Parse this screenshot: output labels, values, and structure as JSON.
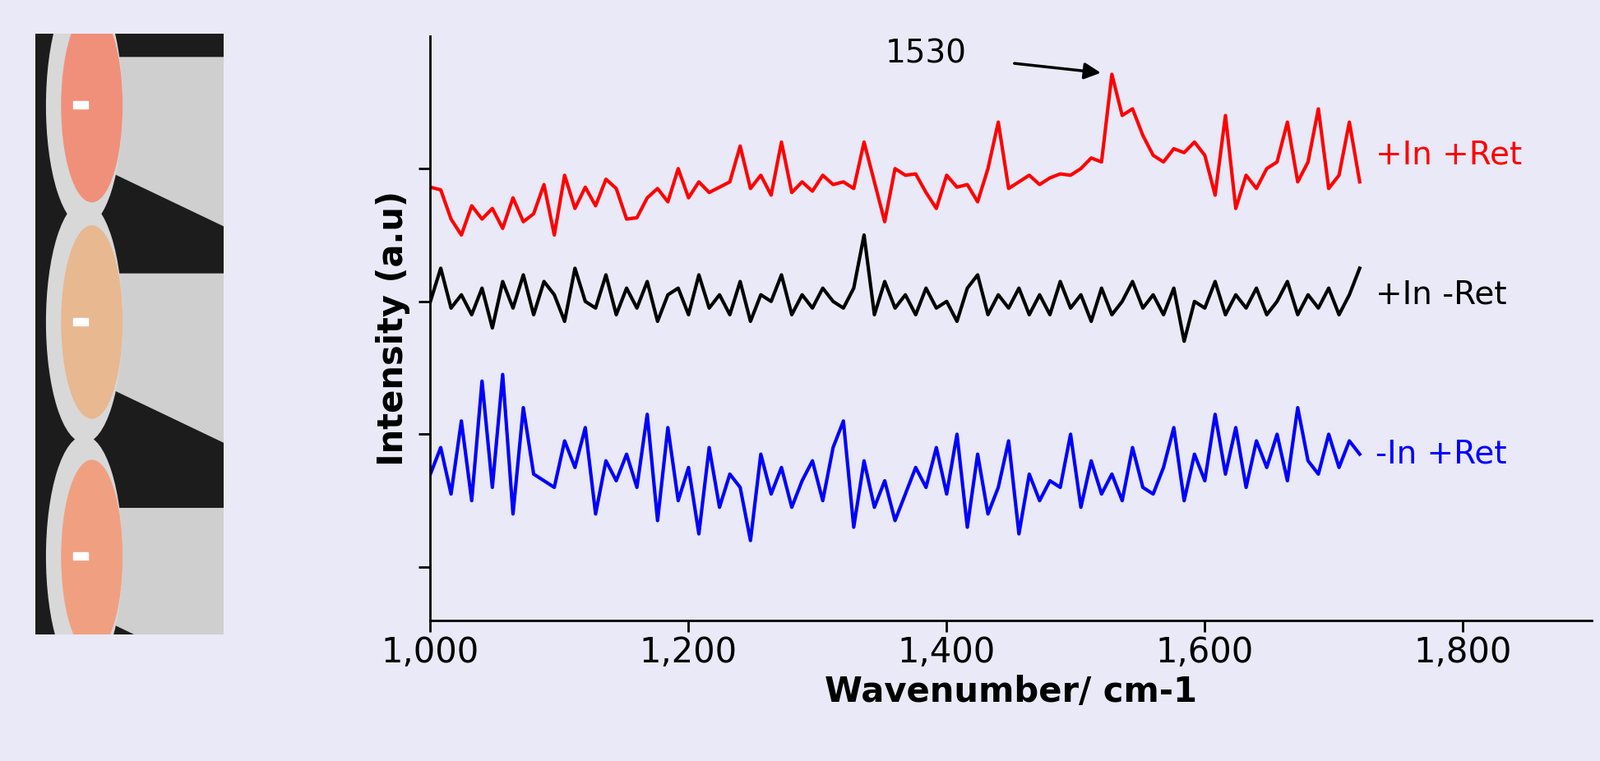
{
  "chart_data": {
    "type": "line",
    "x_label": "Wavenumber/ cm-1",
    "y_label": "Intensity (a.u)",
    "xlim": [
      1000,
      1900
    ],
    "xticks": [
      {
        "value": 1000,
        "label": "1,000"
      },
      {
        "value": 1200,
        "label": "1,200"
      },
      {
        "value": 1400,
        "label": "1,400"
      },
      {
        "value": 1600,
        "label": "1,600"
      },
      {
        "value": 1800,
        "label": "1,800"
      }
    ],
    "ylim": [
      -0.4,
      4.0
    ],
    "yticks": [
      0,
      1,
      2,
      3
    ],
    "tick_labels": "x",
    "grid": false,
    "annotations": [
      {
        "text": "1530",
        "x": 1530,
        "y": 3.71
      }
    ],
    "x": [
      1000,
      1008,
      1016,
      1024,
      1032,
      1040,
      1048,
      1056,
      1064,
      1072,
      1080,
      1088,
      1096,
      1104,
      1112,
      1120,
      1128,
      1136,
      1144,
      1152,
      1160,
      1168,
      1176,
      1184,
      1192,
      1200,
      1208,
      1216,
      1224,
      1232,
      1240,
      1248,
      1256,
      1264,
      1272,
      1280,
      1288,
      1296,
      1304,
      1312,
      1320,
      1328,
      1336,
      1344,
      1352,
      1360,
      1368,
      1376,
      1384,
      1392,
      1400,
      1408,
      1416,
      1424,
      1432,
      1440,
      1448,
      1456,
      1464,
      1472,
      1480,
      1488,
      1496,
      1504,
      1512,
      1520,
      1528,
      1536,
      1544,
      1552,
      1560,
      1568,
      1576,
      1584,
      1592,
      1600,
      1608,
      1616,
      1624,
      1632,
      1640,
      1648,
      1656,
      1664,
      1672,
      1680,
      1688,
      1696,
      1704,
      1712,
      1720
    ],
    "series": [
      {
        "name": "+In +Ret",
        "color": "#ff0000",
        "values": [
          2.86,
          2.84,
          2.62,
          2.5,
          2.72,
          2.62,
          2.7,
          2.55,
          2.78,
          2.6,
          2.66,
          2.88,
          2.5,
          2.95,
          2.7,
          2.86,
          2.72,
          2.92,
          2.85,
          2.62,
          2.63,
          2.78,
          2.85,
          2.75,
          3.0,
          2.78,
          2.9,
          2.82,
          2.86,
          2.9,
          3.17,
          2.85,
          2.95,
          2.8,
          3.2,
          2.82,
          2.9,
          2.83,
          2.95,
          2.88,
          2.9,
          2.85,
          3.2,
          2.9,
          2.6,
          3.0,
          2.95,
          2.96,
          2.82,
          2.7,
          2.95,
          2.86,
          2.88,
          2.75,
          3.0,
          3.35,
          2.85,
          2.9,
          2.95,
          2.88,
          2.93,
          2.96,
          2.95,
          3.0,
          3.08,
          3.05,
          3.71,
          3.4,
          3.45,
          3.25,
          3.1,
          3.05,
          3.15,
          3.12,
          3.2,
          3.1,
          2.8,
          3.4,
          2.7,
          2.95,
          2.85,
          3.0,
          3.05,
          3.35,
          2.9,
          3.05,
          3.45,
          2.85,
          2.95,
          3.35,
          2.9
        ]
      },
      {
        "name": "+In -Ret",
        "color": "#000000",
        "values": [
          2.0,
          2.25,
          1.95,
          2.05,
          1.9,
          2.1,
          1.8,
          2.15,
          1.95,
          2.2,
          1.9,
          2.15,
          2.05,
          1.85,
          2.25,
          2.0,
          1.95,
          2.2,
          1.9,
          2.1,
          1.95,
          2.15,
          1.85,
          2.05,
          2.1,
          1.9,
          2.2,
          1.95,
          2.05,
          1.9,
          2.15,
          1.85,
          2.05,
          2.0,
          2.2,
          1.9,
          2.05,
          1.95,
          2.1,
          2.0,
          1.95,
          2.1,
          2.5,
          1.9,
          2.15,
          1.95,
          2.05,
          1.9,
          2.1,
          1.95,
          2.0,
          1.85,
          2.1,
          2.2,
          1.9,
          2.05,
          1.95,
          2.1,
          1.9,
          2.05,
          1.9,
          2.15,
          1.95,
          2.05,
          1.85,
          2.1,
          1.9,
          2.0,
          2.15,
          1.95,
          2.05,
          1.9,
          2.1,
          1.7,
          2.0,
          1.95,
          2.15,
          1.9,
          2.05,
          1.95,
          2.1,
          1.9,
          2.0,
          2.15,
          1.9,
          2.05,
          1.95,
          2.1,
          1.9,
          2.05,
          2.25
        ]
      },
      {
        "name": "-In +Ret",
        "color": "#0000ff",
        "values": [
          0.7,
          0.9,
          0.55,
          1.1,
          0.5,
          1.4,
          0.6,
          1.45,
          0.4,
          1.2,
          0.7,
          0.65,
          0.6,
          0.95,
          0.75,
          1.05,
          0.4,
          0.8,
          0.65,
          0.85,
          0.6,
          1.15,
          0.35,
          1.05,
          0.5,
          0.75,
          0.25,
          0.9,
          0.45,
          0.7,
          0.6,
          0.2,
          0.85,
          0.55,
          0.75,
          0.45,
          0.65,
          0.8,
          0.5,
          0.9,
          1.1,
          0.3,
          0.8,
          0.45,
          0.65,
          0.35,
          0.55,
          0.75,
          0.6,
          0.9,
          0.55,
          1.0,
          0.3,
          0.85,
          0.4,
          0.6,
          0.95,
          0.25,
          0.7,
          0.5,
          0.65,
          0.6,
          1.0,
          0.45,
          0.8,
          0.55,
          0.7,
          0.5,
          0.9,
          0.6,
          0.55,
          0.75,
          1.05,
          0.5,
          0.85,
          0.65,
          1.15,
          0.7,
          1.05,
          0.6,
          0.95,
          0.75,
          1.0,
          0.65,
          1.2,
          0.8,
          0.7,
          1.0,
          0.75,
          0.95,
          0.85
        ]
      }
    ]
  }
}
